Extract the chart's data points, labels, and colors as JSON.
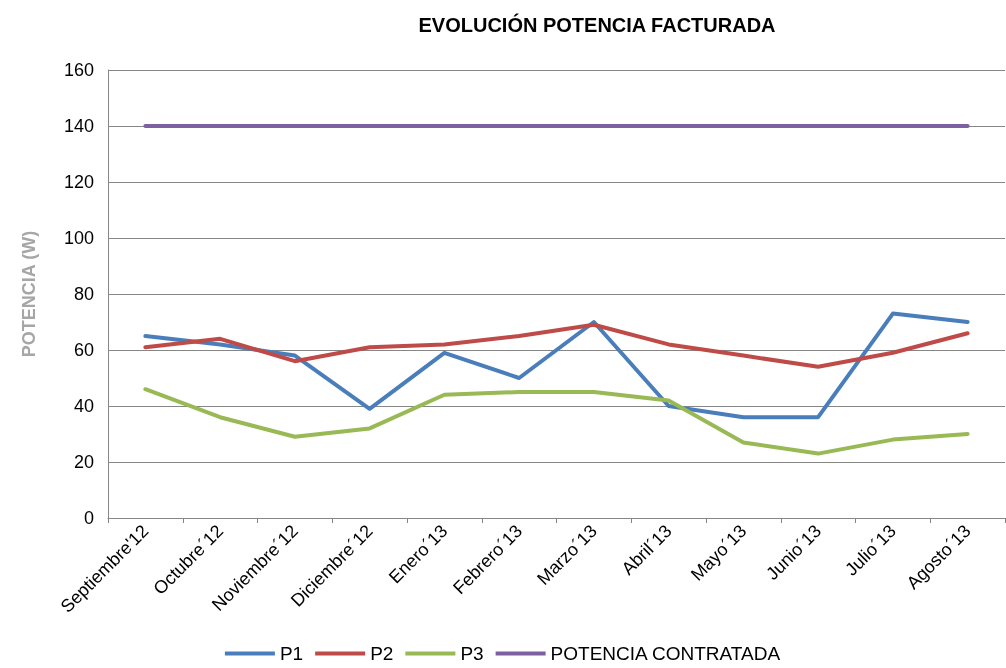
{
  "chart_data": {
    "type": "line",
    "title": "EVOLUCIÓN POTENCIA FACTURADA",
    "ylabel": "POTENCIA (W)",
    "categories": [
      "Septiembre'12",
      "Octubre´12",
      "Noviembre´12",
      "Diciembre´12",
      "Enero´13",
      "Febrero´13",
      "Marzo´13",
      "Abril´13",
      "Mayo´13",
      "Junio´13",
      "Julio´13",
      "Agosto´13"
    ],
    "series": [
      {
        "name": "P1",
        "color": "#4a7ebb",
        "values": [
          65,
          62,
          58,
          39,
          59,
          50,
          70,
          40,
          36,
          36,
          73,
          70
        ]
      },
      {
        "name": "P2",
        "color": "#be4b48",
        "values": [
          61,
          64,
          56,
          61,
          62,
          65,
          69,
          62,
          58,
          54,
          59,
          66
        ]
      },
      {
        "name": "P3",
        "color": "#98b954",
        "values": [
          46,
          36,
          29,
          32,
          44,
          45,
          45,
          42,
          27,
          23,
          28,
          30
        ]
      },
      {
        "name": "POTENCIA CONTRATADA",
        "color": "#7d60a0",
        "values": [
          140,
          140,
          140,
          140,
          140,
          140,
          140,
          140,
          140,
          140,
          140,
          140
        ]
      }
    ],
    "ylim": [
      0,
      160
    ],
    "yticks": [
      0,
      20,
      40,
      60,
      80,
      100,
      120,
      140,
      160
    ],
    "grid": "y",
    "legend": "bottom",
    "marker": "none",
    "line_style": "solid"
  }
}
